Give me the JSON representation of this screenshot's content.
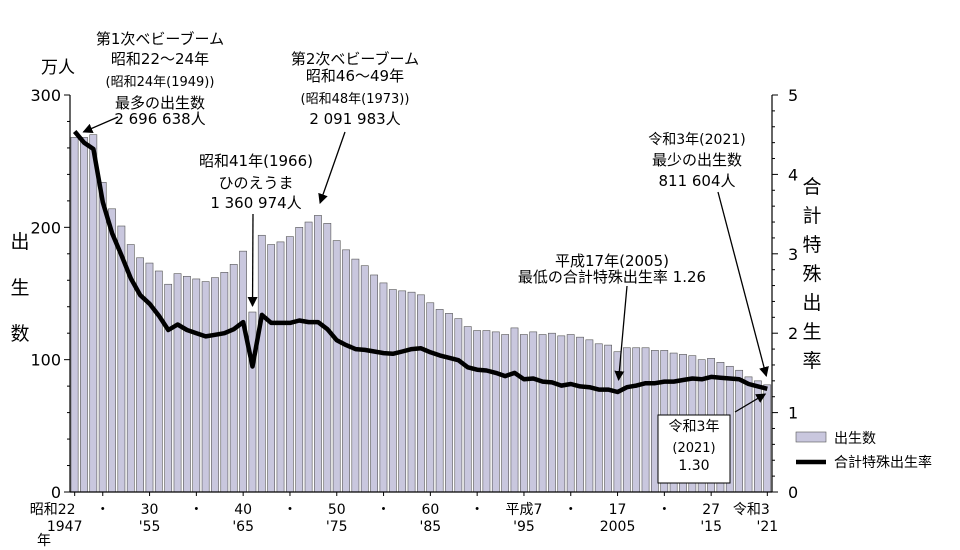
{
  "chart_data": {
    "type": "bar+line",
    "title": "",
    "left_axis": {
      "unit": "万人",
      "label": [
        "出",
        "生",
        "数"
      ],
      "ylim": [
        0,
        300
      ],
      "ticks": [
        0,
        100,
        200,
        300
      ]
    },
    "right_axis": {
      "label": [
        "合",
        "計",
        "特",
        "殊",
        "出",
        "生",
        "率"
      ],
      "ylim": [
        0,
        5
      ],
      "ticks": [
        0,
        1,
        2,
        3,
        4,
        5
      ]
    },
    "x_ticks": [
      {
        "year": 1947,
        "top": "昭和22",
        "bottom": "1947"
      },
      {
        "year": 1950,
        "top": "・",
        "bottom": ""
      },
      {
        "year": 1955,
        "top": "30",
        "bottom": "'55"
      },
      {
        "year": 1960,
        "top": "・",
        "bottom": ""
      },
      {
        "year": 1965,
        "top": "40",
        "bottom": "'65"
      },
      {
        "year": 1970,
        "top": "・",
        "bottom": ""
      },
      {
        "year": 1975,
        "top": "50",
        "bottom": "'75"
      },
      {
        "year": 1980,
        "top": "・",
        "bottom": ""
      },
      {
        "year": 1985,
        "top": "60",
        "bottom": "'85"
      },
      {
        "year": 1990,
        "top": "・",
        "bottom": ""
      },
      {
        "year": 1995,
        "top": "平成7",
        "bottom": "'95"
      },
      {
        "year": 2000,
        "top": "・",
        "bottom": ""
      },
      {
        "year": 2005,
        "top": "17",
        "bottom": "2005"
      },
      {
        "year": 2010,
        "top": "・",
        "bottom": ""
      },
      {
        "year": 2015,
        "top": "27",
        "bottom": "'15"
      },
      {
        "year": 2021,
        "top": "令和3",
        "bottom": "'21"
      }
    ],
    "x_suffix": "年",
    "years": [
      1947,
      1948,
      1949,
      1950,
      1951,
      1952,
      1953,
      1954,
      1955,
      1956,
      1957,
      1958,
      1959,
      1960,
      1961,
      1962,
      1963,
      1964,
      1965,
      1966,
      1967,
      1968,
      1969,
      1970,
      1971,
      1972,
      1973,
      1974,
      1975,
      1976,
      1977,
      1978,
      1979,
      1980,
      1981,
      1982,
      1983,
      1984,
      1985,
      1986,
      1987,
      1988,
      1989,
      1990,
      1991,
      1992,
      1993,
      1994,
      1995,
      1996,
      1997,
      1998,
      1999,
      2000,
      2001,
      2002,
      2003,
      2004,
      2005,
      2006,
      2007,
      2008,
      2009,
      2010,
      2011,
      2012,
      2013,
      2014,
      2015,
      2016,
      2017,
      2018,
      2019,
      2020,
      2021
    ],
    "series": [
      {
        "name": "出生数",
        "axis": "left",
        "unit": "万人",
        "color": "#c9c7de",
        "values": [
          268,
          268,
          270,
          234,
          214,
          201,
          187,
          177,
          173,
          167,
          157,
          165,
          163,
          161,
          159,
          162,
          166,
          172,
          182,
          136,
          194,
          187,
          189,
          193,
          200,
          204,
          209,
          203,
          190,
          183,
          176,
          171,
          164,
          158,
          153,
          152,
          151,
          149,
          143,
          138,
          135,
          131,
          125,
          122,
          122,
          121,
          119,
          124,
          119,
          121,
          119,
          120,
          118,
          119,
          117,
          115,
          112,
          111,
          106,
          109,
          109,
          109,
          107,
          107,
          105,
          104,
          103,
          100,
          101,
          98,
          95,
          92,
          87,
          84,
          81
        ]
      },
      {
        "name": "合計特殊出生率",
        "axis": "right",
        "color": "#000000",
        "values": [
          4.54,
          4.4,
          4.32,
          3.65,
          3.26,
          2.98,
          2.69,
          2.48,
          2.37,
          2.22,
          2.04,
          2.11,
          2.04,
          2.0,
          1.96,
          1.98,
          2.0,
          2.05,
          2.14,
          1.58,
          2.23,
          2.13,
          2.13,
          2.13,
          2.16,
          2.14,
          2.14,
          2.05,
          1.91,
          1.85,
          1.8,
          1.79,
          1.77,
          1.75,
          1.74,
          1.77,
          1.8,
          1.81,
          1.76,
          1.72,
          1.69,
          1.66,
          1.57,
          1.54,
          1.53,
          1.5,
          1.46,
          1.5,
          1.42,
          1.43,
          1.39,
          1.38,
          1.34,
          1.36,
          1.33,
          1.32,
          1.29,
          1.29,
          1.26,
          1.32,
          1.34,
          1.37,
          1.37,
          1.39,
          1.39,
          1.41,
          1.43,
          1.42,
          1.45,
          1.44,
          1.43,
          1.42,
          1.36,
          1.33,
          1.3
        ]
      }
    ],
    "legend": [
      {
        "label": "出生数",
        "kind": "bar"
      },
      {
        "label": "合計特殊出生率",
        "kind": "line"
      }
    ],
    "annotations": [
      {
        "lines": [
          "第1次ベビーブーム",
          "昭和22～24年",
          "(昭和24年(1949))",
          "最多の出生数",
          "2 696 638人"
        ]
      },
      {
        "lines": [
          "第2次ベビーブーム",
          "昭和46～49年",
          "(昭和48年(1973))",
          "2 091 983人"
        ]
      },
      {
        "lines": [
          "昭和41年(1966)",
          "ひのえうま",
          "1 360 974人"
        ]
      },
      {
        "lines": [
          "平成17年(2005)",
          "最低の合計特殊出生率  1.26"
        ]
      },
      {
        "lines": [
          "令和3年(2021)",
          "最少の出生数",
          "811 604人"
        ]
      },
      {
        "lines": [
          "令和3年",
          "(2021)",
          "1.30"
        ]
      }
    ]
  }
}
